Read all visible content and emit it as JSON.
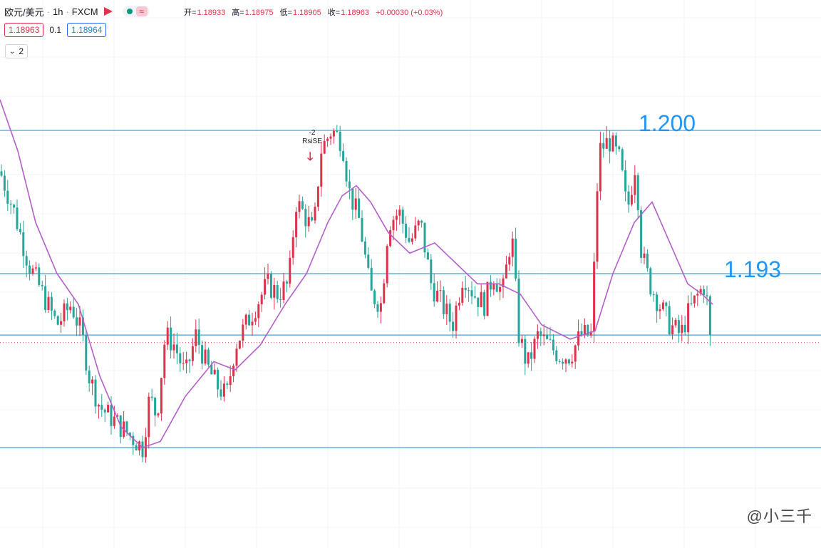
{
  "header": {
    "symbol": "欧元/美元",
    "interval": "1h",
    "exchange": "FXCM",
    "ohlc": {
      "open_label": "开=",
      "open": "1.18933",
      "high_label": "高=",
      "high": "1.18975",
      "low_label": "低=",
      "low": "1.18905",
      "close_label": "收=",
      "close": "1.18963",
      "change": "+0.00030 (+0.03%)"
    }
  },
  "quote": {
    "bid": "1.18963",
    "spread": "0.1",
    "ask": "1.18964"
  },
  "collapse_label": "2",
  "watermark": "@小三千",
  "colors": {
    "up": "#e0314b",
    "down": "#26a69a",
    "ma": "#b35fc8",
    "level": "#1e88c8"
  },
  "chart_data": {
    "type": "candlestick",
    "interval": "1h",
    "y_range": [
      1.1825,
      1.2025
    ],
    "horizontal_levels": [
      {
        "value": 1.2,
        "label": "1.200"
      },
      {
        "value": 1.193,
        "label": "1.193"
      },
      {
        "value": 1.19,
        "label": ""
      },
      {
        "value": 1.1845,
        "label": ""
      }
    ],
    "current_price": 1.18963,
    "close_path": [
      [
        0,
        1.198
      ],
      [
        20,
        1.196
      ],
      [
        40,
        1.1935
      ],
      [
        60,
        1.192
      ],
      [
        80,
        1.1905
      ],
      [
        100,
        1.1915
      ],
      [
        115,
        1.19
      ],
      [
        125,
        1.188
      ],
      [
        140,
        1.1865
      ],
      [
        155,
        1.186
      ],
      [
        170,
        1.1855
      ],
      [
        185,
        1.185
      ],
      [
        200,
        1.1845
      ],
      [
        210,
        1.187
      ],
      [
        220,
        1.186
      ],
      [
        232,
        1.19
      ],
      [
        245,
        1.1895
      ],
      [
        260,
        1.188
      ],
      [
        275,
        1.19
      ],
      [
        290,
        1.1885
      ],
      [
        305,
        1.1875
      ],
      [
        318,
        1.187
      ],
      [
        330,
        1.1895
      ],
      [
        345,
        1.1905
      ],
      [
        360,
        1.1915
      ],
      [
        375,
        1.1925
      ],
      [
        390,
        1.192
      ],
      [
        405,
        1.1925
      ],
      [
        415,
        1.1965
      ],
      [
        425,
        1.196
      ],
      [
        440,
        1.195
      ],
      [
        450,
        1.199
      ],
      [
        465,
        1.2
      ],
      [
        480,
        1.1995
      ],
      [
        490,
        1.197
      ],
      [
        505,
        1.1955
      ],
      [
        520,
        1.192
      ],
      [
        535,
        1.1915
      ],
      [
        545,
        1.1955
      ],
      [
        560,
        1.196
      ],
      [
        575,
        1.1945
      ],
      [
        590,
        1.1955
      ],
      [
        605,
        1.1925
      ],
      [
        620,
        1.1915
      ],
      [
        635,
        1.1905
      ],
      [
        650,
        1.193
      ],
      [
        665,
        1.192
      ],
      [
        680,
        1.1915
      ],
      [
        692,
        1.193
      ],
      [
        705,
        1.192
      ],
      [
        718,
        1.195
      ],
      [
        728,
        1.19
      ],
      [
        740,
        1.1885
      ],
      [
        755,
        1.19
      ],
      [
        770,
        1.1895
      ],
      [
        785,
        1.189
      ],
      [
        800,
        1.189
      ],
      [
        815,
        1.19
      ],
      [
        830,
        1.19
      ],
      [
        840,
        1.199
      ],
      [
        855,
        1.1995
      ],
      [
        870,
        1.1985
      ],
      [
        880,
        1.196
      ],
      [
        892,
        1.1985
      ],
      [
        900,
        1.194
      ],
      [
        912,
        1.1925
      ],
      [
        925,
        1.1915
      ],
      [
        940,
        1.1905
      ],
      [
        955,
        1.19
      ],
      [
        965,
        1.191
      ],
      [
        980,
        1.192
      ],
      [
        990,
        1.1925
      ],
      [
        997,
        1.1895
      ],
      [
        1000,
        1.1896
      ]
    ],
    "moving_average": [
      [
        0,
        1.2015
      ],
      [
        25,
        1.199
      ],
      [
        50,
        1.1955
      ],
      [
        80,
        1.193
      ],
      [
        110,
        1.1915
      ],
      [
        140,
        1.188
      ],
      [
        170,
        1.1855
      ],
      [
        200,
        1.1845
      ],
      [
        225,
        1.1848
      ],
      [
        260,
        1.187
      ],
      [
        300,
        1.1887
      ],
      [
        330,
        1.1883
      ],
      [
        365,
        1.1895
      ],
      [
        400,
        1.1915
      ],
      [
        430,
        1.193
      ],
      [
        460,
        1.1955
      ],
      [
        480,
        1.1968
      ],
      [
        500,
        1.1973
      ],
      [
        520,
        1.1965
      ],
      [
        545,
        1.195
      ],
      [
        575,
        1.194
      ],
      [
        610,
        1.1945
      ],
      [
        640,
        1.1935
      ],
      [
        670,
        1.1925
      ],
      [
        700,
        1.1925
      ],
      [
        730,
        1.192
      ],
      [
        760,
        1.1905
      ],
      [
        800,
        1.1898
      ],
      [
        835,
        1.1902
      ],
      [
        860,
        1.193
      ],
      [
        890,
        1.1955
      ],
      [
        915,
        1.1965
      ],
      [
        940,
        1.1945
      ],
      [
        965,
        1.1925
      ],
      [
        985,
        1.192
      ],
      [
        1000,
        1.1915
      ]
    ],
    "signal": {
      "x": 438,
      "price": 1.1998,
      "label_count": "-2",
      "label": "RsiSE"
    }
  }
}
